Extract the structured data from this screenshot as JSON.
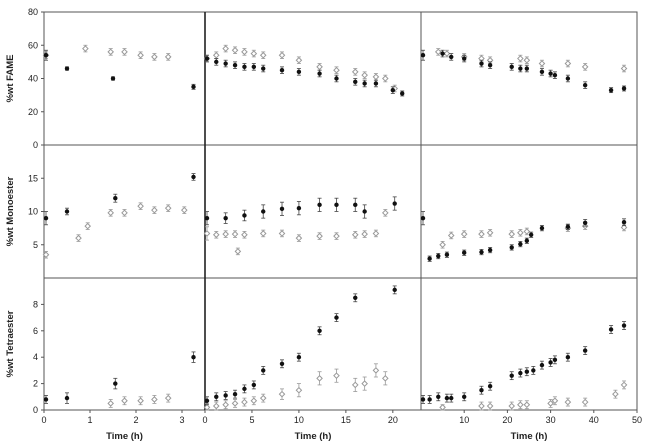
{
  "chart_data": {
    "type": "scatter",
    "rows": [
      {
        "ylabel": "%wt FAME",
        "ylim": [
          0,
          80
        ],
        "yticks": [
          0,
          20,
          40,
          60,
          80
        ]
      },
      {
        "ylabel": "%wt Monoester",
        "ylim": [
          0,
          20
        ],
        "yticks": [
          5,
          10,
          15
        ]
      },
      {
        "ylabel": "%wt Tetraester",
        "ylim": [
          0,
          10
        ],
        "yticks": [
          0,
          2,
          4,
          6,
          8
        ]
      }
    ],
    "columns": [
      {
        "xlabel": "Time (h)",
        "xlim": [
          0,
          3.5
        ],
        "xticks": [
          0,
          1,
          2,
          3
        ]
      },
      {
        "xlabel": "Time (h)",
        "xlim": [
          0,
          23
        ],
        "xticks": [
          0,
          5,
          10,
          15,
          20
        ]
      },
      {
        "xlabel": "Time (h)",
        "xlim": [
          0,
          50
        ],
        "xticks": [
          10,
          20,
          30,
          40,
          50
        ]
      }
    ],
    "series": [
      {
        "marker": "filled-circle",
        "color": "#111111"
      },
      {
        "marker": "open-diamond",
        "color": "#999999"
      }
    ],
    "panels": [
      {
        "row": 0,
        "col": 0,
        "filled": [
          [
            0,
            54,
            3
          ],
          [
            0.5,
            46,
            1
          ],
          [
            1.5,
            40,
            1
          ],
          [
            3.25,
            35,
            1.5
          ]
        ],
        "open": [
          [
            0,
            54,
            2
          ],
          [
            0.9,
            58,
            2
          ],
          [
            1.45,
            56,
            2
          ],
          [
            1.75,
            56,
            2
          ],
          [
            2.1,
            54,
            2
          ],
          [
            2.4,
            53,
            2
          ],
          [
            2.7,
            53,
            2
          ]
        ]
      },
      {
        "row": 0,
        "col": 1,
        "filled": [
          [
            0,
            52,
            2
          ],
          [
            1.2,
            50,
            2
          ],
          [
            2.2,
            49,
            2
          ],
          [
            3.2,
            48,
            2
          ],
          [
            4.2,
            47,
            2
          ],
          [
            5.2,
            47,
            2
          ],
          [
            6.2,
            46,
            2
          ],
          [
            8.2,
            45,
            2
          ],
          [
            10,
            44,
            2
          ],
          [
            12.2,
            43,
            2
          ],
          [
            14,
            40,
            2
          ],
          [
            16,
            38,
            2
          ],
          [
            17,
            37,
            2
          ],
          [
            18.2,
            37,
            2
          ],
          [
            20,
            33,
            2
          ],
          [
            21,
            31,
            1.5
          ]
        ],
        "open": [
          [
            0,
            52,
            2
          ],
          [
            1.2,
            54,
            2
          ],
          [
            2.2,
            58,
            2
          ],
          [
            3.2,
            57,
            2
          ],
          [
            4.2,
            56,
            2
          ],
          [
            5.2,
            55,
            2
          ],
          [
            6.2,
            54,
            2
          ],
          [
            8.2,
            54,
            2
          ],
          [
            10,
            51,
            2
          ],
          [
            12.2,
            47,
            2
          ],
          [
            14,
            45,
            2
          ],
          [
            16,
            44,
            2
          ],
          [
            17,
            42,
            2
          ],
          [
            18.2,
            41,
            2
          ],
          [
            19.2,
            40,
            2
          ],
          [
            20.2,
            34,
            2
          ]
        ]
      },
      {
        "row": 0,
        "col": 2,
        "filled": [
          [
            0,
            54,
            3
          ],
          [
            5,
            55,
            2
          ],
          [
            7,
            53,
            2
          ],
          [
            10,
            52,
            2
          ],
          [
            14,
            49,
            2
          ],
          [
            16,
            48,
            2
          ],
          [
            21,
            47,
            2
          ],
          [
            23,
            46,
            2
          ],
          [
            24.5,
            46,
            2
          ],
          [
            28,
            44,
            2
          ],
          [
            30,
            43,
            2
          ],
          [
            31,
            42,
            2
          ],
          [
            34,
            40,
            2
          ],
          [
            38,
            36,
            2
          ],
          [
            44,
            33,
            1.5
          ],
          [
            47,
            34,
            1.5
          ]
        ],
        "open": [
          [
            4,
            56,
            2
          ],
          [
            6,
            55,
            2
          ],
          [
            10,
            53,
            2
          ],
          [
            14,
            52,
            2
          ],
          [
            16,
            51,
            2
          ],
          [
            23,
            52,
            2
          ],
          [
            24.5,
            51,
            2
          ],
          [
            28,
            49,
            2
          ],
          [
            34,
            49,
            2
          ],
          [
            38,
            47,
            2
          ],
          [
            47,
            46,
            2
          ]
        ]
      },
      {
        "row": 1,
        "col": 0,
        "filled": [
          [
            0,
            9,
            1
          ],
          [
            0.5,
            10,
            0.5
          ],
          [
            1.55,
            12,
            0.6
          ],
          [
            3.25,
            15.2,
            0.5
          ]
        ],
        "open": [
          [
            0,
            3.5,
            0.5
          ],
          [
            0.75,
            6,
            0.5
          ],
          [
            0.95,
            7.8,
            0.5
          ],
          [
            1.45,
            9.8,
            0.5
          ],
          [
            1.75,
            9.8,
            0.5
          ],
          [
            2.1,
            10.8,
            0.5
          ],
          [
            2.4,
            10.2,
            0.5
          ],
          [
            2.7,
            10.5,
            0.5
          ],
          [
            3.05,
            10.2,
            0.5
          ]
        ]
      },
      {
        "row": 1,
        "col": 1,
        "filled": [
          [
            0,
            9,
            1
          ],
          [
            2.2,
            9,
            0.8
          ],
          [
            4.2,
            9.4,
            0.8
          ],
          [
            6.2,
            10,
            1
          ],
          [
            8.2,
            10.4,
            1
          ],
          [
            10,
            10.5,
            1
          ],
          [
            12.2,
            11,
            1
          ],
          [
            14,
            11,
            1
          ],
          [
            16,
            11,
            1
          ],
          [
            17,
            10,
            1
          ],
          [
            20.2,
            11.2,
            1
          ]
        ],
        "open": [
          [
            0,
            6.7,
            1
          ],
          [
            1.2,
            6.5,
            0.5
          ],
          [
            2.2,
            6.6,
            0.5
          ],
          [
            3.2,
            6.6,
            0.5
          ],
          [
            3.5,
            4,
            0.5
          ],
          [
            4.2,
            6.5,
            0.5
          ],
          [
            6.2,
            6.7,
            0.5
          ],
          [
            8.2,
            6.7,
            0.5
          ],
          [
            10,
            6,
            0.5
          ],
          [
            12.2,
            6.3,
            0.5
          ],
          [
            14,
            6.3,
            0.5
          ],
          [
            16,
            6.5,
            0.5
          ],
          [
            17,
            6.6,
            0.5
          ],
          [
            18.2,
            6.7,
            0.5
          ],
          [
            19.2,
            9.8,
            0.5
          ]
        ]
      },
      {
        "row": 1,
        "col": 2,
        "filled": [
          [
            0,
            9,
            1
          ],
          [
            2,
            2.9,
            0.4
          ],
          [
            4,
            3.3,
            0.4
          ],
          [
            6,
            3.5,
            0.4
          ],
          [
            10,
            3.8,
            0.4
          ],
          [
            14,
            3.9,
            0.4
          ],
          [
            16,
            4.2,
            0.4
          ],
          [
            21,
            4.6,
            0.4
          ],
          [
            23,
            5.1,
            0.4
          ],
          [
            24.5,
            5.6,
            0.4
          ],
          [
            25.5,
            6.5,
            0.4
          ],
          [
            28,
            7.5,
            0.4
          ],
          [
            34,
            7.7,
            0.4
          ],
          [
            38,
            8.3,
            0.5
          ],
          [
            47,
            8.4,
            0.5
          ]
        ],
        "open": [
          [
            5,
            5,
            0.5
          ],
          [
            7,
            6.4,
            0.5
          ],
          [
            10,
            6.6,
            0.5
          ],
          [
            14,
            6.6,
            0.5
          ],
          [
            16,
            6.8,
            0.5
          ],
          [
            21,
            6.6,
            0.5
          ],
          [
            23,
            6.8,
            0.5
          ],
          [
            24.5,
            7,
            0.5
          ],
          [
            34,
            7.5,
            0.5
          ],
          [
            38,
            7.8,
            0.5
          ],
          [
            47,
            7.6,
            0.5
          ]
        ]
      },
      {
        "row": 2,
        "col": 0,
        "filled": [
          [
            0,
            0.8,
            0.3
          ],
          [
            0.5,
            0.9,
            0.4
          ],
          [
            1.55,
            2,
            0.4
          ],
          [
            3.25,
            4,
            0.4
          ]
        ],
        "open": [
          [
            1.45,
            0.5,
            0.3
          ],
          [
            1.75,
            0.7,
            0.3
          ],
          [
            2.1,
            0.7,
            0.3
          ],
          [
            2.4,
            0.8,
            0.3
          ],
          [
            2.7,
            0.9,
            0.3
          ]
        ]
      },
      {
        "row": 2,
        "col": 1,
        "filled": [
          [
            0,
            0.7,
            0.3
          ],
          [
            1.2,
            1,
            0.3
          ],
          [
            2.2,
            1.1,
            0.3
          ],
          [
            3.2,
            1.2,
            0.3
          ],
          [
            4.2,
            1.6,
            0.3
          ],
          [
            5.2,
            1.9,
            0.3
          ],
          [
            6.2,
            3,
            0.3
          ],
          [
            8.2,
            3.5,
            0.3
          ],
          [
            10,
            4,
            0.3
          ],
          [
            12.2,
            6,
            0.3
          ],
          [
            14,
            7,
            0.3
          ],
          [
            16,
            8.5,
            0.3
          ],
          [
            20.2,
            9.1,
            0.3
          ]
        ],
        "open": [
          [
            0,
            0.2,
            0.3
          ],
          [
            1.2,
            0.3,
            0.3
          ],
          [
            2.2,
            0.4,
            0.3
          ],
          [
            3.2,
            0.5,
            0.3
          ],
          [
            4.2,
            0.6,
            0.3
          ],
          [
            5.2,
            0.7,
            0.3
          ],
          [
            6.2,
            0.9,
            0.3
          ],
          [
            8.2,
            1.2,
            0.4
          ],
          [
            10,
            1.5,
            0.5
          ],
          [
            12.2,
            2.4,
            0.5
          ],
          [
            14,
            2.6,
            0.5
          ],
          [
            16,
            1.9,
            0.5
          ],
          [
            17,
            2,
            0.5
          ],
          [
            18.2,
            3,
            0.5
          ],
          [
            19.2,
            2.4,
            0.5
          ]
        ]
      },
      {
        "row": 2,
        "col": 2,
        "filled": [
          [
            0,
            0.8,
            0.3
          ],
          [
            2,
            0.8,
            0.3
          ],
          [
            4,
            1,
            0.3
          ],
          [
            6,
            0.9,
            0.3
          ],
          [
            7,
            0.9,
            0.3
          ],
          [
            10,
            1,
            0.3
          ],
          [
            14,
            1.5,
            0.3
          ],
          [
            16,
            1.8,
            0.3
          ],
          [
            21,
            2.6,
            0.3
          ],
          [
            23,
            2.8,
            0.3
          ],
          [
            24.5,
            2.9,
            0.3
          ],
          [
            26,
            3,
            0.3
          ],
          [
            28,
            3.4,
            0.3
          ],
          [
            30,
            3.6,
            0.3
          ],
          [
            31,
            3.8,
            0.3
          ],
          [
            34,
            4,
            0.3
          ],
          [
            38,
            4.5,
            0.3
          ],
          [
            44,
            6.1,
            0.3
          ],
          [
            47,
            6.4,
            0.3
          ]
        ],
        "open": [
          [
            5,
            0.2,
            0.2
          ],
          [
            14,
            0.3,
            0.3
          ],
          [
            16,
            0.3,
            0.3
          ],
          [
            21,
            0.3,
            0.3
          ],
          [
            23,
            0.4,
            0.3
          ],
          [
            24.5,
            0.4,
            0.3
          ],
          [
            30,
            0.5,
            0.3
          ],
          [
            31,
            0.7,
            0.3
          ],
          [
            34,
            0.6,
            0.3
          ],
          [
            38,
            0.6,
            0.3
          ],
          [
            45,
            1.2,
            0.3
          ],
          [
            47,
            1.9,
            0.3
          ]
        ]
      }
    ]
  }
}
